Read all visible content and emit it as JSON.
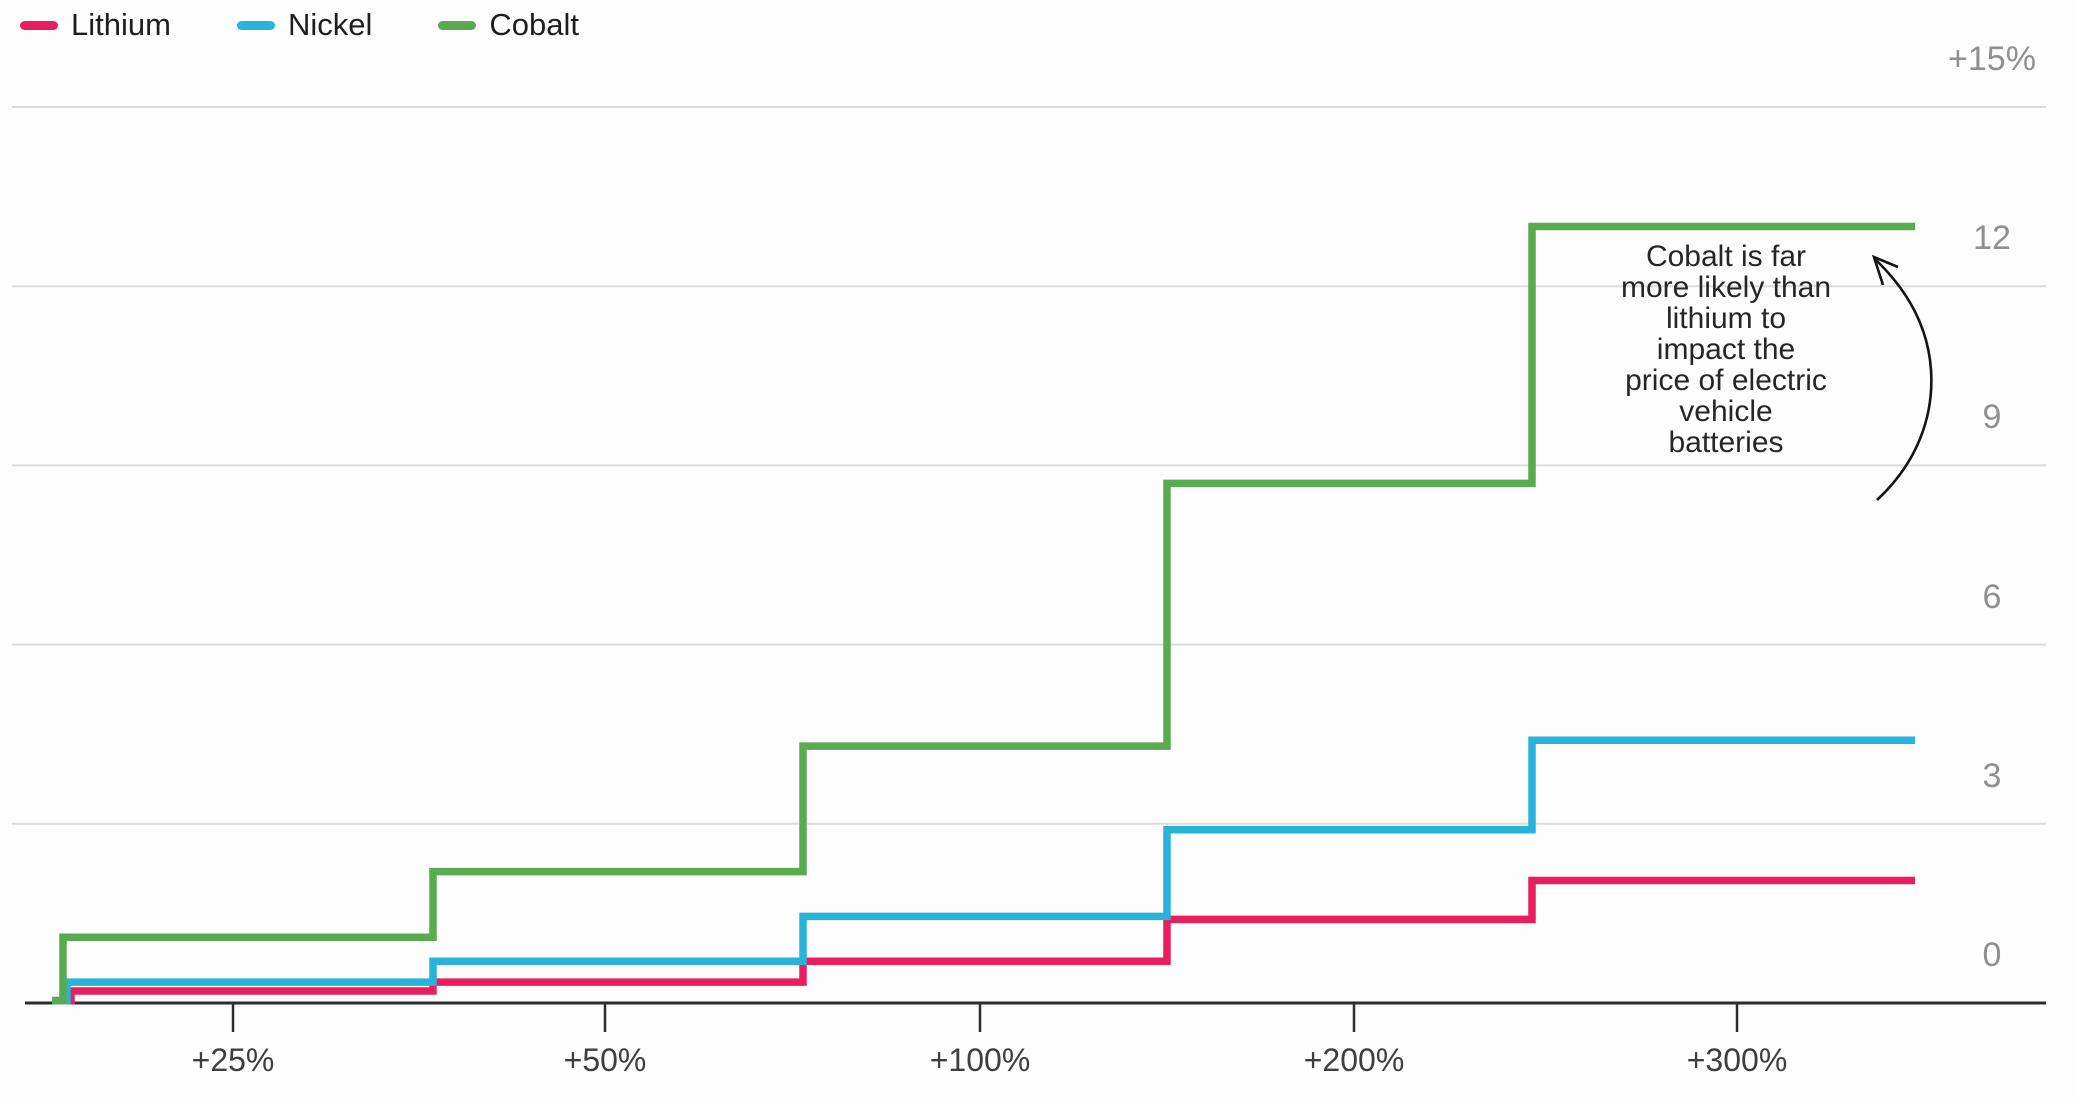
{
  "legend": {
    "position": "top-left",
    "items": [
      {
        "label": "Lithium",
        "color": "#ea1e5e"
      },
      {
        "label": "Nickel",
        "color": "#28b3da"
      },
      {
        "label": "Cobalt",
        "color": "#58ab4f"
      }
    ]
  },
  "annotation": {
    "lines": [
      "Cobalt is far",
      "more likely than",
      "lithium to",
      "impact the",
      "price of electric",
      "vehicle",
      "batteries"
    ],
    "arrow_points_to": "cobalt-line"
  },
  "chart_data": {
    "type": "line",
    "line_style": "step",
    "categories": [
      "+25%",
      "+50%",
      "+100%",
      "+200%",
      "+300%"
    ],
    "x_tick_labels": [
      "+25%",
      "+50%",
      "+100%",
      "+200%",
      "+300%"
    ],
    "series": [
      {
        "name": "Lithium",
        "color": "#ea1e5e",
        "values": [
          0.2,
          0.35,
          0.7,
          1.4,
          2.05
        ]
      },
      {
        "name": "Nickel",
        "color": "#28b3da",
        "values": [
          0.35,
          0.7,
          1.45,
          2.9,
          4.4
        ]
      },
      {
        "name": "Cobalt",
        "color": "#58ab4f",
        "values": [
          1.1,
          2.2,
          4.3,
          8.7,
          13.0
        ]
      }
    ],
    "y_ticks": [
      0,
      3,
      6,
      9,
      12,
      15
    ],
    "y_tick_labels": [
      "0",
      "3",
      "6",
      "9",
      "12",
      "+15%"
    ],
    "ylim": [
      0,
      15
    ],
    "grid": "horizontal",
    "legend_position": "top-left",
    "colors": {
      "gridline": "#dcdcdc",
      "axis_baseline": "#2d2d2d",
      "y_label": "#8f8f8f",
      "x_label": "#3e3e3e",
      "annotation_text": "#262626",
      "arrow": "#141414",
      "background": "#fdfdfd"
    }
  }
}
